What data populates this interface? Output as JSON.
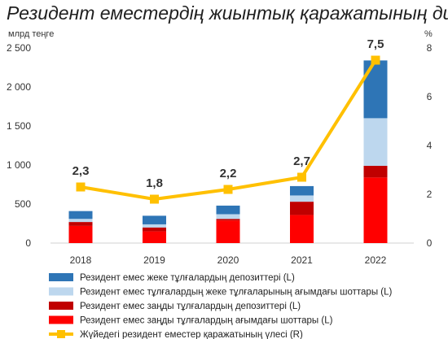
{
  "chart_data": {
    "type": "bar",
    "title": "Резидент еместердің жиынтық қаражатының динамикасы",
    "left_unit": "млрд теңге",
    "right_unit": "%",
    "left_ylim": [
      0,
      2500
    ],
    "left_ticks": [
      "0",
      "500",
      "1 000",
      "1 500",
      "2 000",
      "2 500"
    ],
    "right_ylim": [
      0,
      8
    ],
    "right_ticks": [
      "0",
      "2",
      "4",
      "6",
      "8"
    ],
    "categories": [
      "2018",
      "2019",
      "2020",
      "2021",
      "2022"
    ],
    "series": [
      {
        "name": "Резидент емес заңды тұлғалардың ағымдағы шоттары (L)",
        "values": [
          220,
          150,
          290,
          360,
          840
        ],
        "color": "#ff0000"
      },
      {
        "name": "Резидент емес заңды тұлғалардың депозиттері (L)",
        "values": [
          50,
          50,
          20,
          170,
          150
        ],
        "color": "#c00000"
      },
      {
        "name": "Резидент емес тұлғалардың жеке тұлғаларының ағымдағы шоттары (L)",
        "values": [
          40,
          40,
          60,
          80,
          610
        ],
        "color": "#bdd7ee"
      },
      {
        "name": "Резидент емес жеке тұлғалардың депозиттері (L)",
        "values": [
          100,
          110,
          110,
          120,
          740
        ],
        "color": "#2e75b6"
      }
    ],
    "line_series": {
      "name": "Жүйедегі резидент еместер қаражатының үлесі (R)",
      "values": [
        2.3,
        1.8,
        2.2,
        2.7,
        7.5
      ],
      "labels": [
        "2,3",
        "1,8",
        "2,2",
        "2,7",
        "7,5"
      ],
      "color": "#ffc000"
    },
    "legend_position": "bottom-left"
  }
}
